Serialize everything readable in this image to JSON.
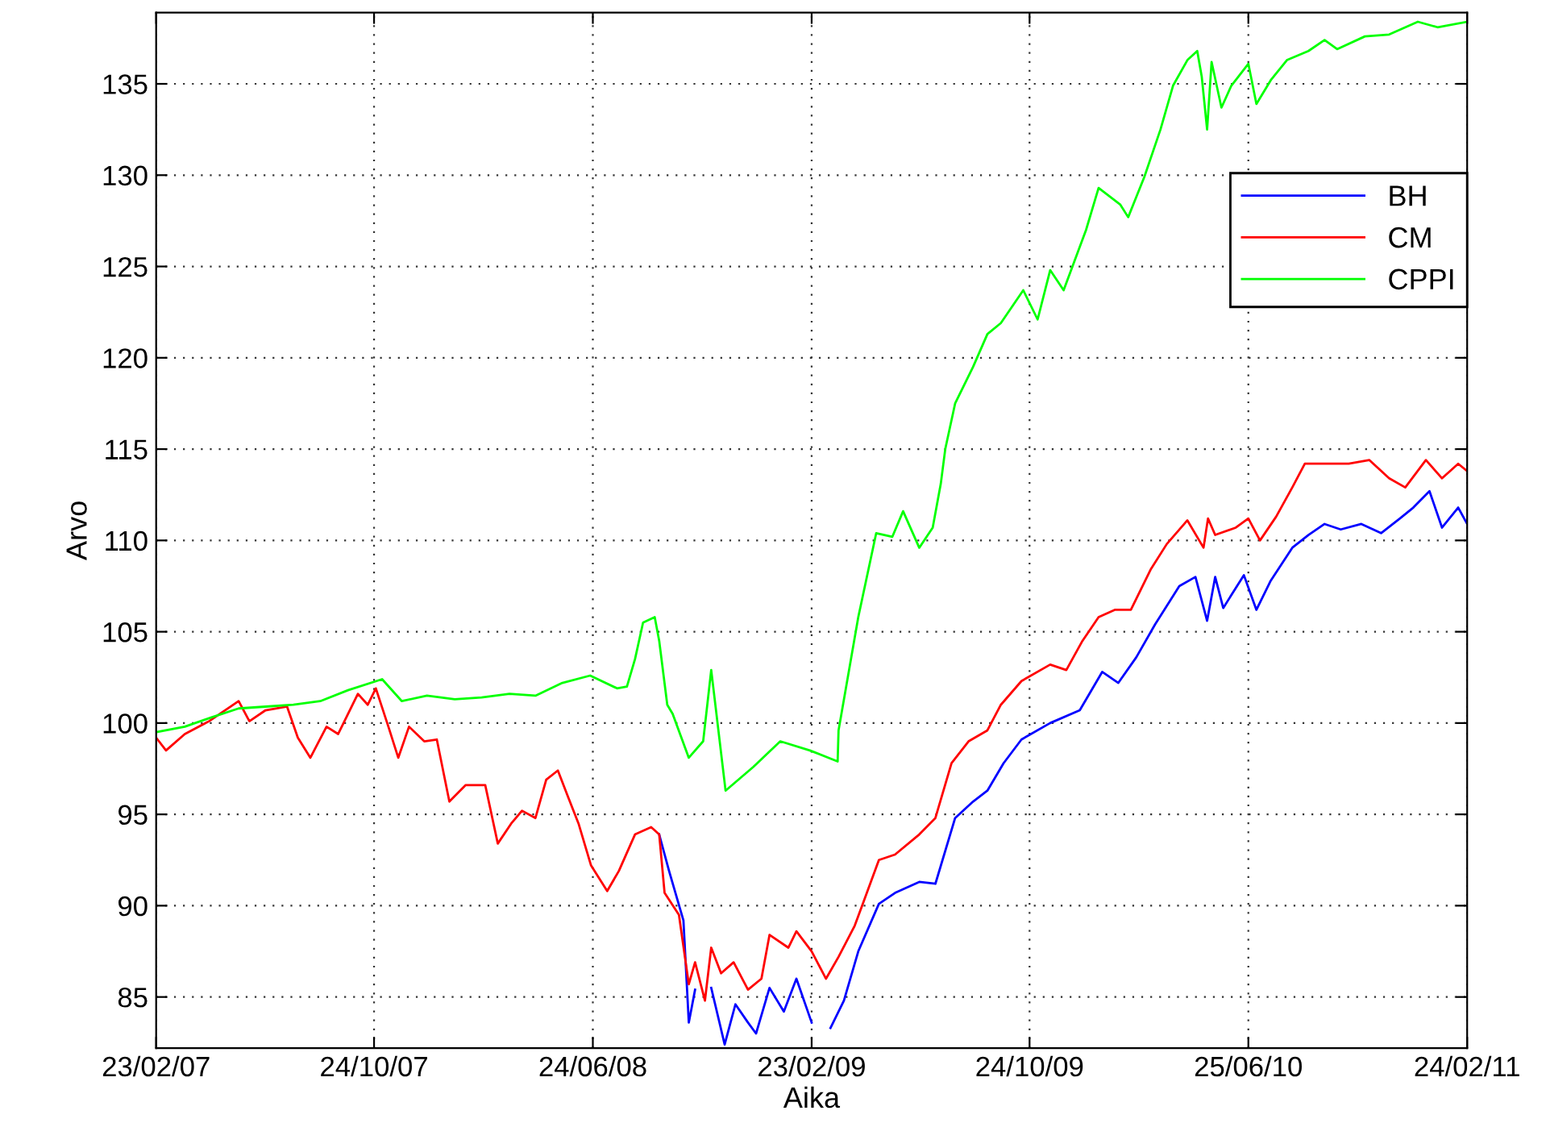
{
  "chart_data": {
    "type": "line",
    "xlabel": "Aika",
    "ylabel": "Arvo",
    "xlim": [
      "2007-02-23",
      "2011-02-24"
    ],
    "ylim": [
      82.2,
      138.9
    ],
    "xticks": [
      {
        "value": "2007-02-23",
        "label": "23/02/07"
      },
      {
        "value": "2007-10-24",
        "label": "24/10/07"
      },
      {
        "value": "2008-06-24",
        "label": "24/06/08"
      },
      {
        "value": "2009-02-23",
        "label": "23/02/09"
      },
      {
        "value": "2009-10-24",
        "label": "24/10/09"
      },
      {
        "value": "2010-06-25",
        "label": "25/06/10"
      },
      {
        "value": "2011-02-24",
        "label": "24/02/11"
      }
    ],
    "yticks": [
      85,
      90,
      95,
      100,
      105,
      110,
      115,
      120,
      125,
      130,
      135
    ],
    "grid": true,
    "legend": "top right",
    "marker": "none",
    "line_style": "solid",
    "series": [
      {
        "name": "BH",
        "color": "#0000ff",
        "x": [
          "2008-09-06",
          "2008-09-17",
          "2008-10-03",
          "2008-10-09",
          "2008-10-16",
          "2008-10-25",
          "2008-11-03",
          "2008-11-18",
          "2008-11-30",
          "2008-12-14",
          "2008-12-23",
          "2009-01-07",
          "2009-01-23",
          "2009-02-06",
          "2009-02-23",
          "2009-03-07",
          "2009-03-16",
          "2009-03-31",
          "2009-04-16",
          "2009-05-09",
          "2009-05-27",
          "2009-06-23",
          "2009-07-11",
          "2009-08-02",
          "2009-08-22",
          "2009-09-07",
          "2009-09-25",
          "2009-10-15",
          "2009-11-16",
          "2009-12-19",
          "2010-01-13",
          "2010-01-31",
          "2010-02-20",
          "2010-03-13",
          "2010-04-09",
          "2010-04-27",
          "2010-05-10",
          "2010-05-19",
          "2010-05-28",
          "2010-06-20",
          "2010-07-04",
          "2010-07-20",
          "2010-08-13",
          "2010-08-31",
          "2010-09-18",
          "2010-10-06",
          "2010-10-29",
          "2010-11-20",
          "2010-12-11",
          "2010-12-26",
          "2011-01-13",
          "2011-01-27",
          "2011-02-14",
          "2011-02-24"
        ],
        "values": [
          93.9,
          91.9,
          89.2,
          83.6,
          85.4,
          null,
          85.5,
          82.4,
          84.6,
          83.6,
          83,
          85.5,
          84.2,
          86,
          83.6,
          null,
          83.3,
          84.8,
          87.5,
          90.1,
          90.7,
          91.3,
          91.2,
          94.8,
          95.7,
          96.3,
          97.8,
          99.1,
          100,
          100.7,
          102.8,
          102.2,
          103.6,
          105.4,
          107.5,
          108,
          105.6,
          108,
          106.3,
          108.1,
          106.2,
          107.8,
          109.6,
          110.3,
          110.9,
          110.6,
          110.9,
          110.4,
          111.2,
          111.8,
          112.7,
          110.7,
          111.8,
          110.9
        ]
      },
      {
        "name": "CM",
        "color": "#ff0000",
        "x": [
          "2007-02-23",
          "2007-03-06",
          "2007-03-27",
          "2007-04-23",
          "2007-05-26",
          "2007-06-07",
          "2007-06-25",
          "2007-07-19",
          "2007-07-31",
          "2007-08-14",
          "2007-09-01",
          "2007-09-14",
          "2007-10-06",
          "2007-10-17",
          "2007-10-26",
          "2007-11-09",
          "2007-11-20",
          "2007-12-02",
          "2007-12-19",
          "2008-01-02",
          "2008-01-16",
          "2008-02-03",
          "2008-02-25",
          "2008-03-10",
          "2008-03-25",
          "2008-04-06",
          "2008-04-21",
          "2008-05-03",
          "2008-05-16",
          "2008-05-27",
          "2008-06-08",
          "2008-06-22",
          "2008-07-10",
          "2008-07-23",
          "2008-08-10",
          "2008-08-28",
          "2008-09-06",
          "2008-09-12",
          "2008-09-28",
          "2008-10-09",
          "2008-10-16",
          "2008-10-27",
          "2008-11-03",
          "2008-11-14",
          "2008-11-28",
          "2008-12-14",
          "2008-12-29",
          "2009-01-07",
          "2009-01-28",
          "2009-02-06",
          "2009-02-23",
          "2009-03-11",
          "2009-03-25",
          "2009-04-12",
          "2009-04-21",
          "2009-05-09",
          "2009-05-27",
          "2009-06-23",
          "2009-07-11",
          "2009-07-29",
          "2009-08-17",
          "2009-09-07",
          "2009-09-22",
          "2009-10-15",
          "2009-11-16",
          "2009-12-04",
          "2009-12-22",
          "2010-01-09",
          "2010-01-27",
          "2010-02-14",
          "2010-03-08",
          "2010-03-26",
          "2010-04-18",
          "2010-05-06",
          "2010-05-11",
          "2010-05-19",
          "2010-06-11",
          "2010-06-25",
          "2010-07-08",
          "2010-07-26",
          "2010-08-13",
          "2010-08-27",
          "2010-09-18",
          "2010-10-15",
          "2010-11-07",
          "2010-11-29",
          "2010-12-17",
          "2011-01-09",
          "2011-01-27",
          "2011-02-14",
          "2011-02-24"
        ],
        "values": [
          99.2,
          98.5,
          99.4,
          100.1,
          101.2,
          100.1,
          100.7,
          100.9,
          99.2,
          98.1,
          99.8,
          99.4,
          101.6,
          101,
          101.9,
          99.8,
          98.1,
          99.8,
          99,
          99.1,
          95.7,
          96.6,
          96.6,
          93.4,
          94.5,
          95.2,
          94.8,
          96.9,
          97.4,
          96,
          94.5,
          92.2,
          90.8,
          91.9,
          93.9,
          94.3,
          93.9,
          90.7,
          89.5,
          85.7,
          86.9,
          84.8,
          87.7,
          86.3,
          86.9,
          85.4,
          86,
          88.4,
          87.7,
          88.6,
          87.5,
          86,
          87.2,
          88.9,
          90.1,
          92.5,
          92.8,
          93.9,
          94.8,
          97.8,
          99,
          99.6,
          101,
          102.3,
          103.2,
          102.9,
          104.5,
          105.8,
          106.2,
          106.2,
          108.4,
          109.8,
          111.1,
          109.6,
          111.2,
          110.3,
          110.7,
          111.2,
          110,
          111.3,
          112.9,
          114.2,
          114.2,
          114.2,
          114.4,
          113.4,
          112.9,
          114.4,
          113.4,
          114.2,
          113.8
        ]
      },
      {
        "name": "CPPI",
        "color": "#00ff00",
        "x": [
          "2007-02-23",
          "2007-03-27",
          "2007-04-25",
          "2007-05-26",
          "2007-06-25",
          "2007-07-26",
          "2007-08-25",
          "2007-09-25",
          "2007-11-02",
          "2007-11-24",
          "2007-12-22",
          "2008-01-22",
          "2008-02-21",
          "2008-03-23",
          "2008-04-21",
          "2008-05-21",
          "2008-06-21",
          "2008-07-21",
          "2008-08-01",
          "2008-08-10",
          "2008-08-19",
          "2008-09-01",
          "2008-09-06",
          "2008-09-15",
          "2008-09-21",
          "2008-10-09",
          "2008-10-25",
          "2008-11-03",
          "2008-11-19",
          "2008-12-20",
          "2009-01-19",
          "2009-02-21",
          "2009-03-24",
          "2009-03-25",
          "2009-04-16",
          "2009-05-06",
          "2009-05-24",
          "2009-06-05",
          "2009-06-23",
          "2009-07-08",
          "2009-07-17",
          "2009-07-22",
          "2009-08-02",
          "2009-08-22",
          "2009-09-07",
          "2009-09-22",
          "2009-10-17",
          "2009-11-02",
          "2009-11-16",
          "2009-12-01",
          "2009-12-26",
          "2010-01-09",
          "2010-02-02",
          "2010-02-11",
          "2010-03-01",
          "2010-03-19",
          "2010-04-02",
          "2010-04-18",
          "2010-04-29",
          "2010-05-04",
          "2010-05-10",
          "2010-05-15",
          "2010-05-26",
          "2010-06-06",
          "2010-06-25",
          "2010-07-04",
          "2010-07-20",
          "2010-08-07",
          "2010-08-31",
          "2010-09-18",
          "2010-10-02",
          "2010-11-02",
          "2010-11-29",
          "2010-12-31",
          "2011-01-22",
          "2011-02-24"
        ],
        "values": [
          99.5,
          99.8,
          100.3,
          100.8,
          100.9,
          101,
          101.2,
          101.8,
          102.4,
          101.2,
          101.5,
          101.3,
          101.4,
          101.6,
          101.5,
          102.2,
          102.6,
          101.9,
          102,
          103.5,
          105.5,
          105.8,
          104.5,
          101,
          100.5,
          98.1,
          99,
          102.9,
          96.3,
          97.6,
          99,
          98.5,
          97.9,
          99.6,
          105.8,
          110.4,
          110.2,
          111.6,
          109.6,
          110.7,
          113.1,
          115,
          117.5,
          119.5,
          121.3,
          121.9,
          123.7,
          122.1,
          124.8,
          123.7,
          127,
          129.3,
          128.4,
          127.7,
          129.9,
          132.5,
          134.9,
          136.3,
          136.8,
          135.4,
          132.5,
          136.2,
          133.7,
          134.9,
          136.1,
          133.9,
          135.2,
          136.3,
          136.8,
          137.4,
          136.9,
          137.6,
          137.7,
          138.4,
          138.1,
          138.4
        ]
      }
    ]
  }
}
